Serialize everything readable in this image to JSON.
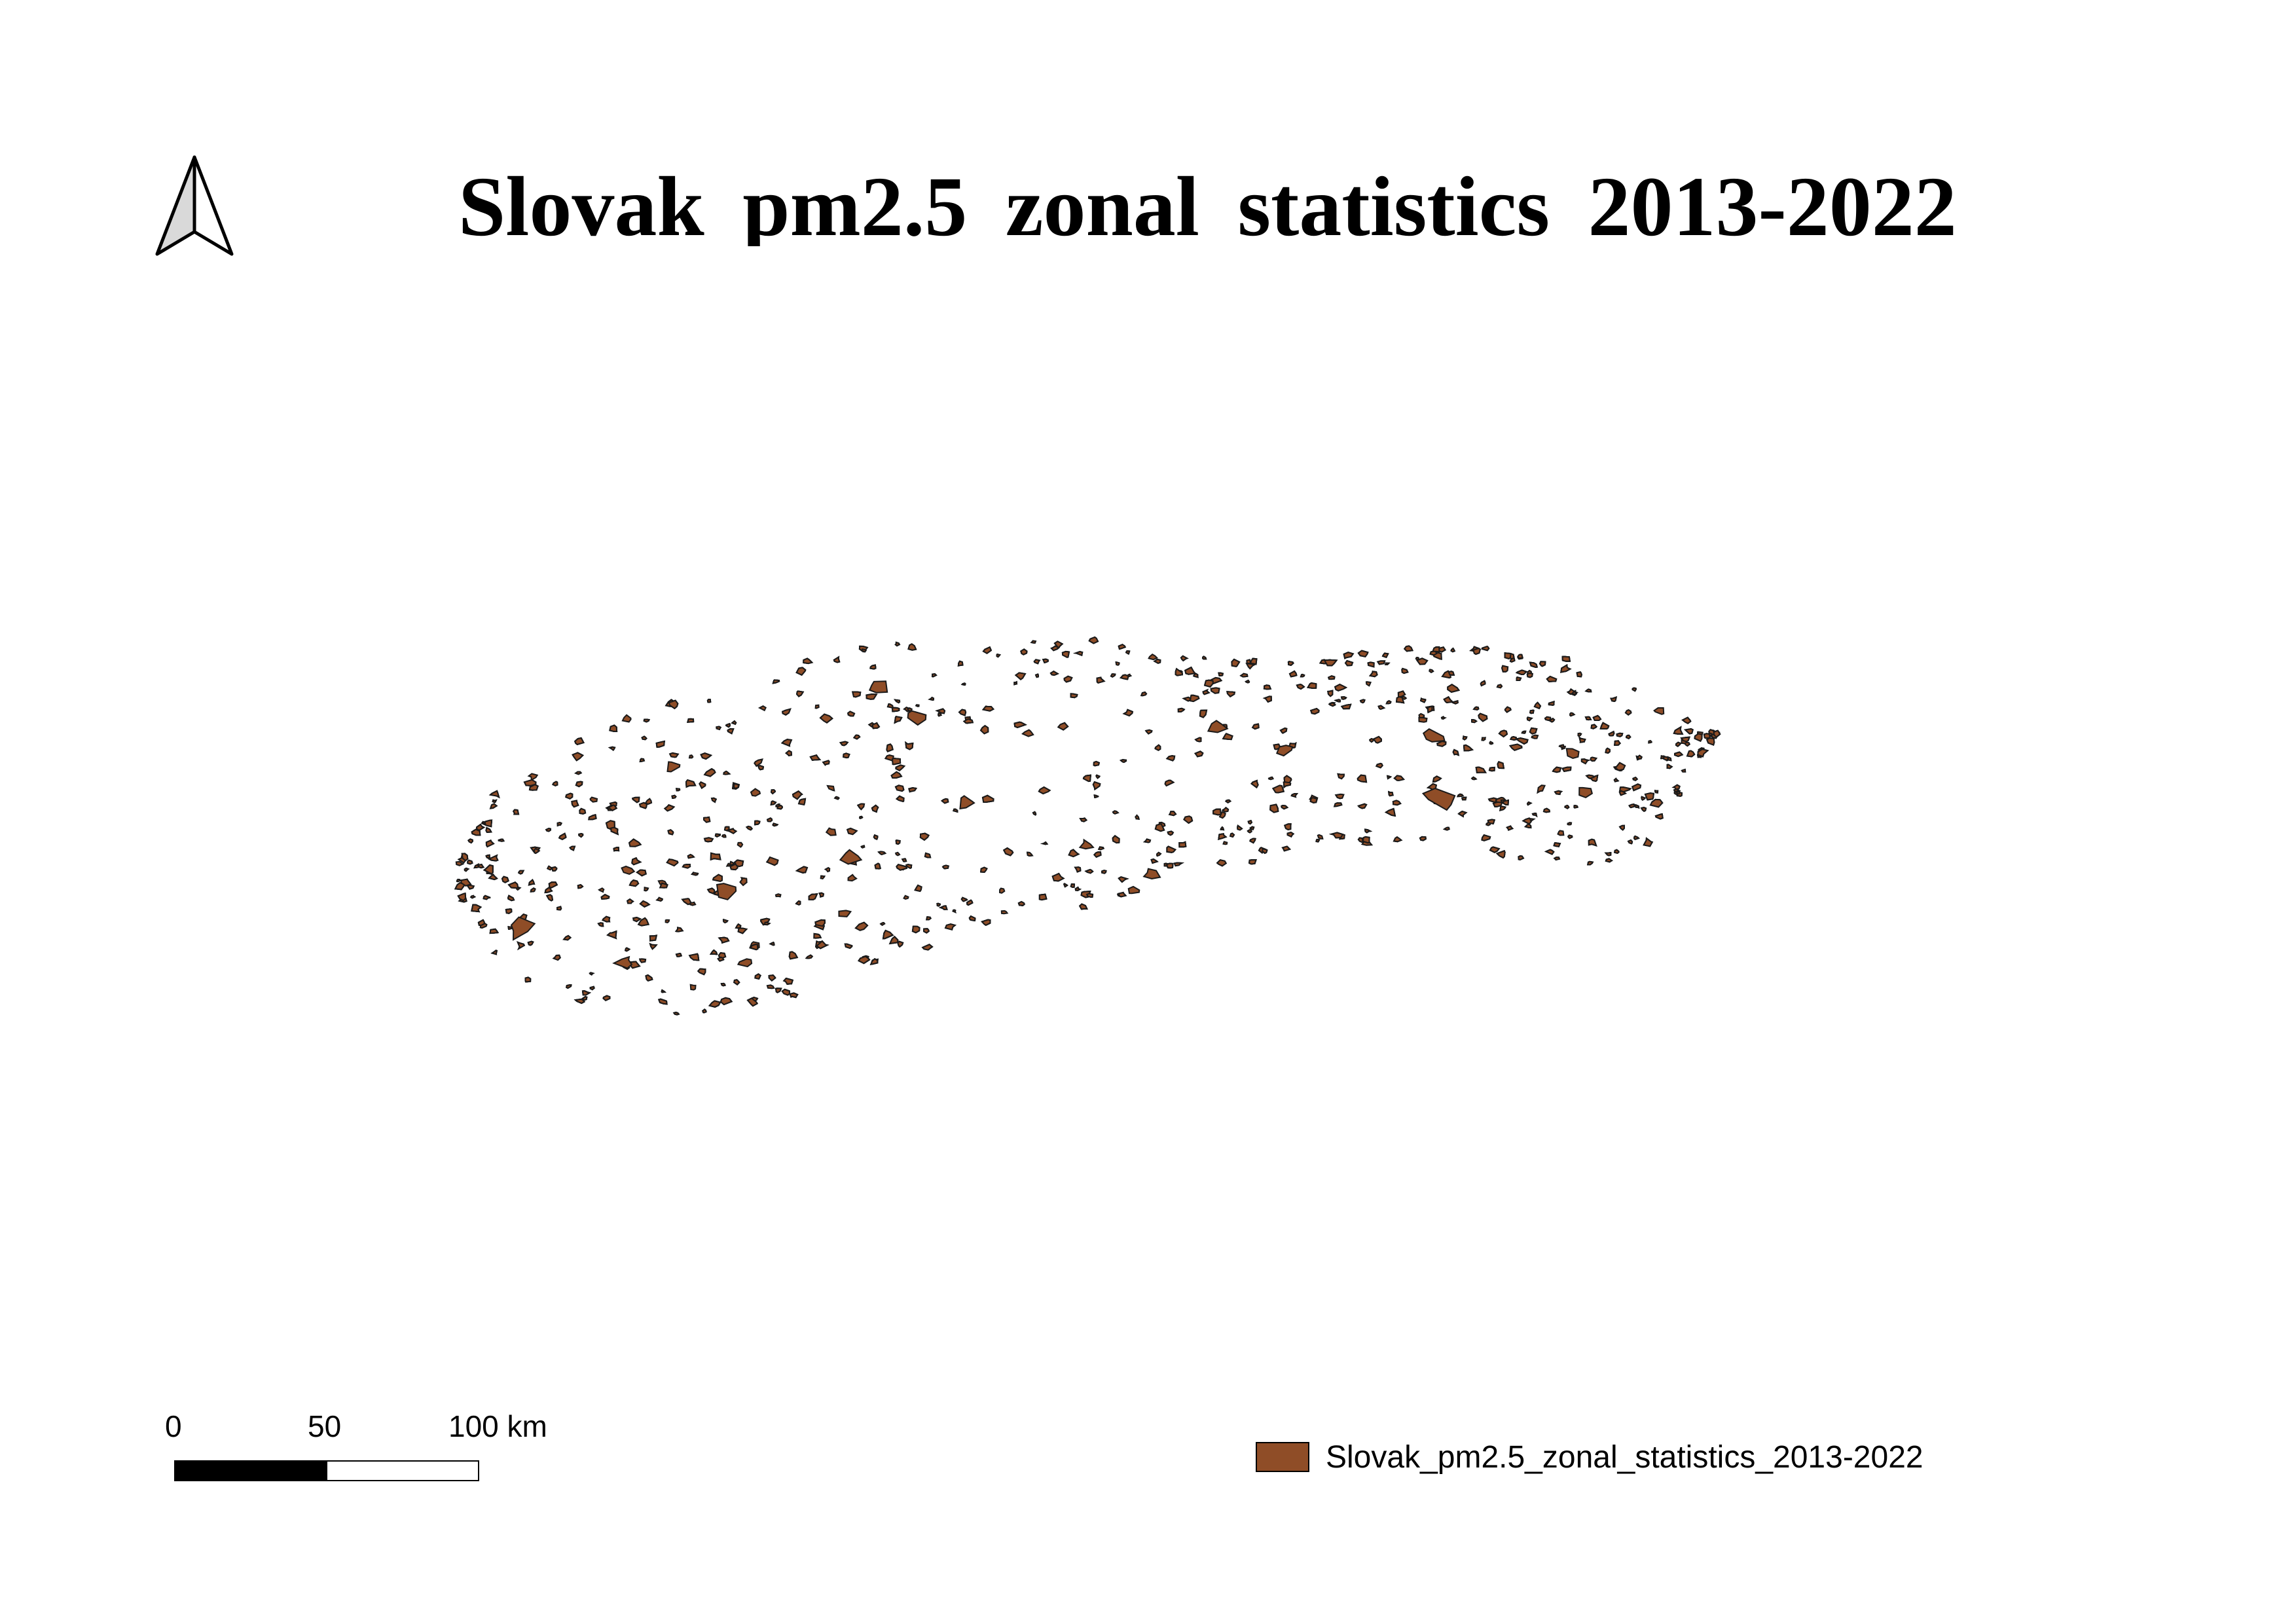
{
  "map": {
    "title": "Slovak  pm2.5  zonal  statistics  2013-2022",
    "north_arrow": "north-arrow-icon",
    "scale_bar": {
      "labels": [
        "0",
        "50",
        "100 km"
      ],
      "segments": [
        {
          "from_km": 0,
          "to_km": 50,
          "fill": "#000000"
        },
        {
          "from_km": 50,
          "to_km": 100,
          "fill": "#ffffff"
        }
      ]
    },
    "legend": [
      {
        "label": "Slovak_pm2.5_zonal_statistics_2013-2022",
        "color": "#8f4d27"
      }
    ],
    "feature_fill": "#8f4d27",
    "feature_outline": "#1a1a1a",
    "layer_shape": "scattered-polygons-of-slovakia"
  }
}
